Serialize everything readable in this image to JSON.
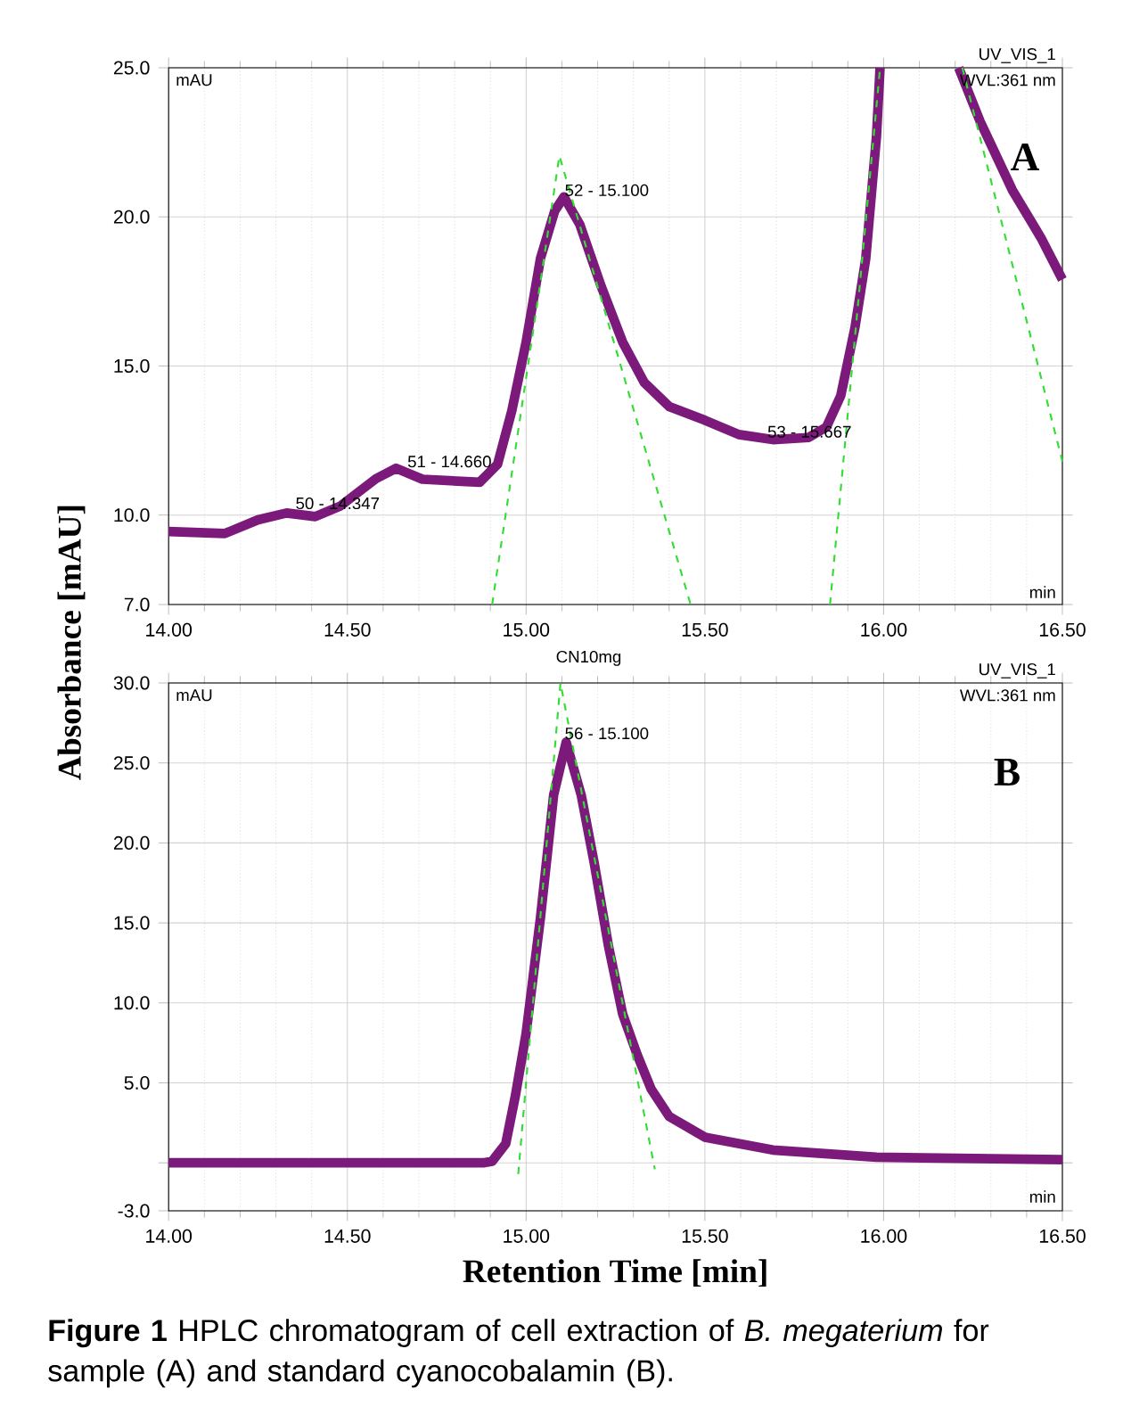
{
  "chart_data": [
    {
      "type": "line",
      "ylabel": "Absorbance [mAU]",
      "annotations": [
        "mAU",
        "min",
        "UV_VIS_1",
        "WVL:361 nm",
        "A",
        {
          "text": "50 - 14.347",
          "x": 14.347,
          "y": 10.1
        },
        {
          "text": "51 - 14.660",
          "x": 14.66,
          "y": 11.5
        },
        {
          "text": "52 - 15.100",
          "x": 15.1,
          "y": 20.6
        },
        {
          "text": "53 - 15.667",
          "x": 15.667,
          "y": 12.5
        }
      ],
      "xlim": [
        14,
        16.5
      ],
      "ylim": [
        7,
        25
      ],
      "xticks": [
        {
          "value": 14,
          "label": "14.00"
        },
        {
          "value": 14.5,
          "label": "14.50"
        },
        {
          "value": 15,
          "label": "15.00"
        },
        {
          "value": 15.5,
          "label": "15.50"
        },
        {
          "value": 16,
          "label": "16.00"
        },
        {
          "value": 16.5,
          "label": "16.50"
        }
      ],
      "yticks": [
        {
          "value": 7,
          "label": "7.0"
        },
        {
          "value": 10,
          "label": "10.0"
        },
        {
          "value": 15,
          "label": "15.0"
        },
        {
          "value": 20,
          "label": "20.0"
        },
        {
          "value": 25,
          "label": "25.0"
        }
      ],
      "grid": true,
      "series": [
        {
          "color": "#7b1a7b",
          "x": [
            14.0,
            14.157,
            14.25,
            14.33,
            14.41,
            14.48,
            14.58,
            14.636,
            14.71,
            14.87,
            14.92,
            14.96,
            15.0,
            15.04,
            15.08,
            15.106,
            15.15,
            15.21,
            15.27,
            15.33,
            15.4,
            15.5,
            15.595,
            15.69,
            15.79,
            15.84,
            15.88,
            15.92,
            15.95,
            15.98,
            15.99,
            16.1,
            16.21,
            16.27,
            16.36,
            16.44,
            16.5
          ],
          "values": [
            9.45,
            9.38,
            9.84,
            10.07,
            9.95,
            10.3,
            11.22,
            11.57,
            11.2,
            11.1,
            11.7,
            13.5,
            15.8,
            18.6,
            20.2,
            20.67,
            19.75,
            17.67,
            15.8,
            14.45,
            13.64,
            13.18,
            12.7,
            12.53,
            12.6,
            12.95,
            14.0,
            16.3,
            18.6,
            22.7,
            25.0,
            null,
            25.0,
            23.2,
            20.9,
            19.3,
            17.9
          ]
        },
        {
          "color": "#33dd33",
          "line_style": "dashed",
          "x": [
            14.905,
            15.093,
            15.46
          ],
          "values": [
            7,
            22.05,
            7
          ]
        },
        {
          "color": "#33dd33",
          "line_style": "dashed",
          "x": [
            15.85,
            15.99,
            16.1,
            16.22,
            16.5
          ],
          "values": [
            7,
            25,
            null,
            25,
            11.8
          ]
        }
      ]
    },
    {
      "type": "line",
      "title": "CN10mg",
      "xlabel": "Retention Time [min]",
      "annotations": [
        "mAU",
        "min",
        "UV_VIS_1",
        "WVL:361 nm",
        "B",
        "**Figure 1** HPLC chromatogram of cell extraction of *B. megaterium* for sample (A) and standard cyanocobalamin (B).",
        {
          "text": "56 - 15.100",
          "x": 15.1,
          "y": 26.3
        }
      ],
      "xlim": [
        14,
        16.5
      ],
      "ylim": [
        -3,
        30
      ],
      "xticks": [
        {
          "value": 14,
          "label": "14.00"
        },
        {
          "value": 14.5,
          "label": "14.50"
        },
        {
          "value": 15,
          "label": "15.00"
        },
        {
          "value": 15.5,
          "label": "15.50"
        },
        {
          "value": 16,
          "label": "16.00"
        },
        {
          "value": 16.5,
          "label": "16.50"
        }
      ],
      "yticks": [
        {
          "value": -3,
          "label": "-3.0"
        },
        {
          "value": 0,
          "label": null
        },
        {
          "value": 5,
          "label": "5.0"
        },
        {
          "value": 10,
          "label": "10.0"
        },
        {
          "value": 15,
          "label": "15.0"
        },
        {
          "value": 20,
          "label": "20.0"
        },
        {
          "value": 25,
          "label": "25.0"
        },
        {
          "value": 30,
          "label": "30.0"
        }
      ],
      "grid": true,
      "series": [
        {
          "color": "#7b1a7b",
          "x": [
            14.0,
            14.5,
            14.88,
            14.905,
            14.943,
            14.97,
            15.0,
            15.04,
            15.077,
            15.112,
            15.154,
            15.19,
            15.23,
            15.27,
            15.31,
            15.35,
            15.4,
            15.5,
            15.69,
            15.98,
            16.5
          ],
          "values": [
            0,
            0,
            0,
            0.1,
            1.2,
            4.2,
            8.1,
            15.3,
            23.0,
            26.3,
            23.0,
            18.8,
            13.6,
            9.3,
            6.8,
            4.6,
            2.9,
            1.6,
            0.8,
            0.35,
            0.2
          ]
        },
        {
          "color": "#33dd33",
          "line_style": "dashed",
          "x": [
            14.978,
            15.096,
            15.36
          ],
          "values": [
            -0.7,
            30,
            -0.4
          ]
        }
      ]
    }
  ]
}
